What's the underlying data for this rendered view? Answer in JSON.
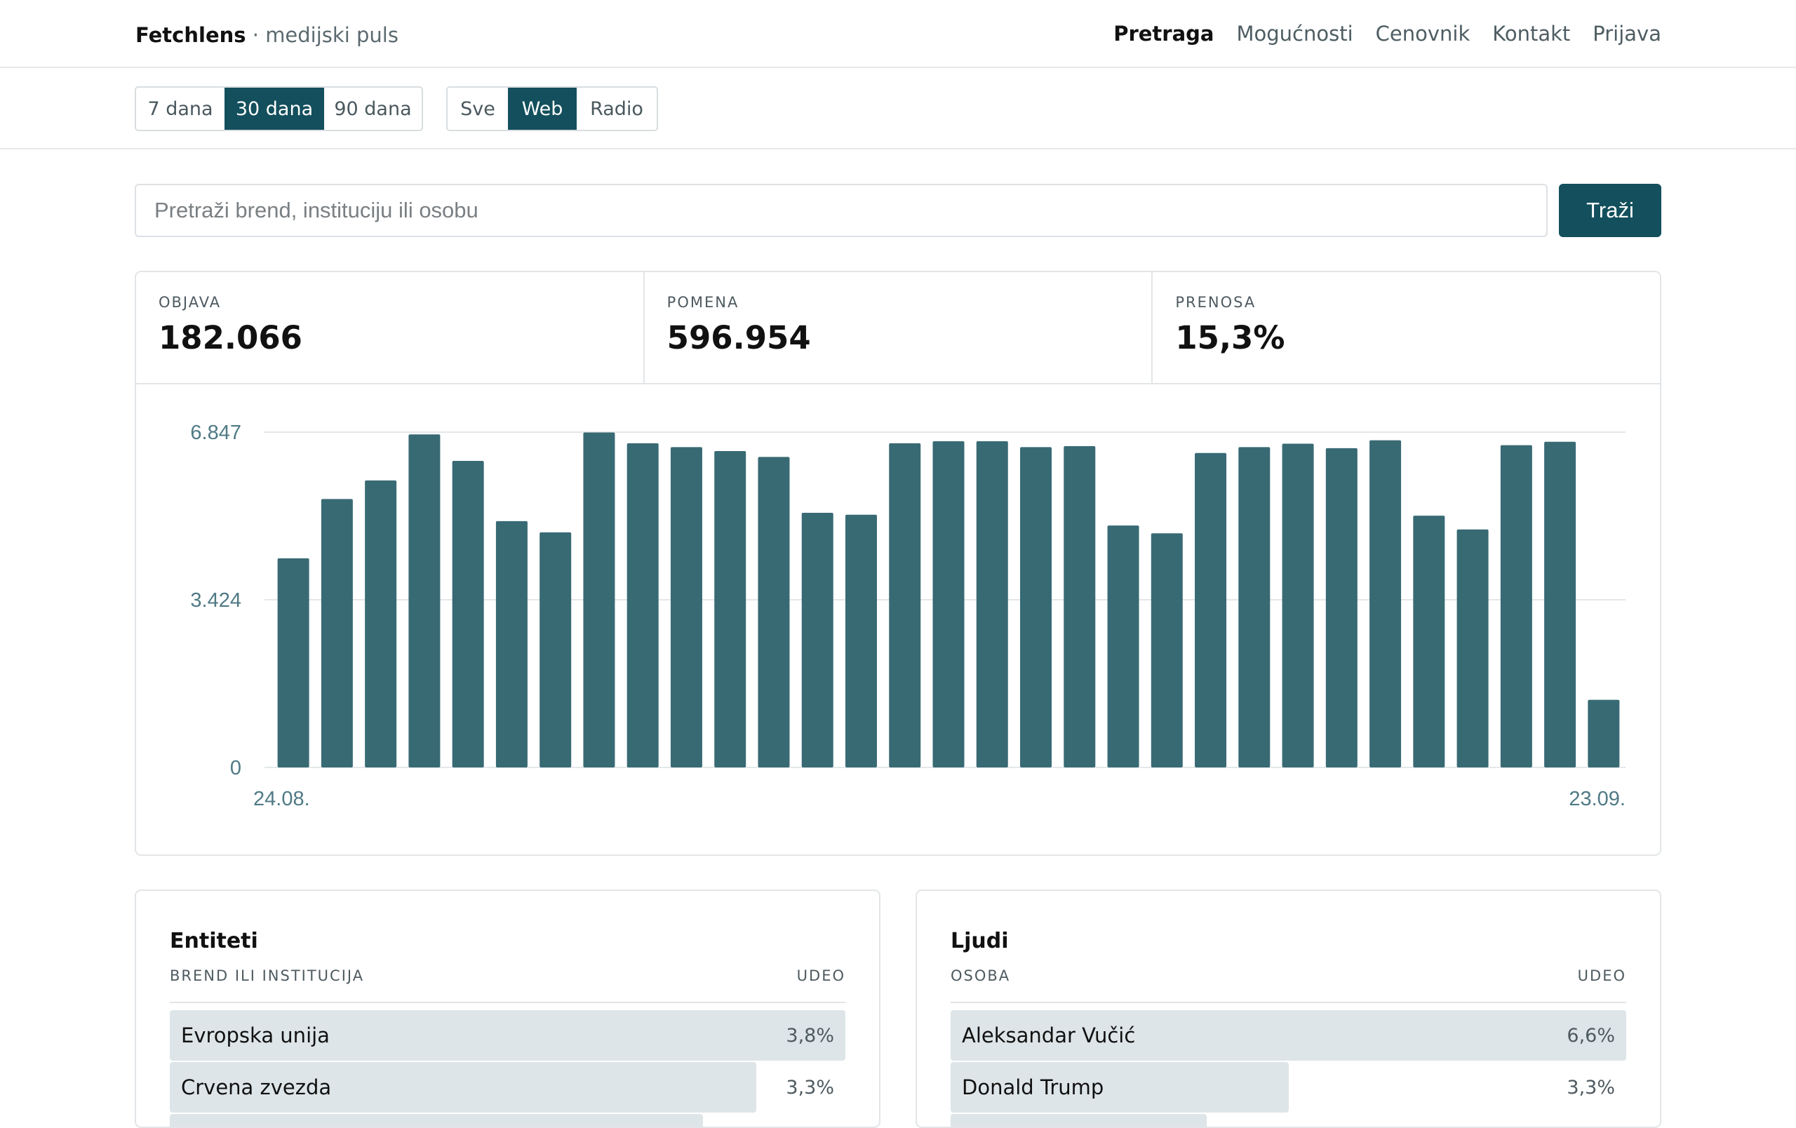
{
  "header": {
    "brand_name": "Fetchlens",
    "brand_sep": " · ",
    "brand_tag": "medijski puls",
    "nav": [
      "Pretraga",
      "Mogućnosti",
      "Cenovnik",
      "Kontakt",
      "Prijava"
    ],
    "nav_active": 0
  },
  "filters": {
    "range": [
      "7 dana",
      "30 dana",
      "90 dana"
    ],
    "range_active": 1,
    "source": [
      "Sve",
      "Web",
      "Radio"
    ],
    "source_active": 1
  },
  "search": {
    "placeholder": "Pretraži brend, instituciju ili osobu",
    "button": "Traži"
  },
  "stats": [
    {
      "label": "OBJAVA",
      "value": "182.066"
    },
    {
      "label": "POMENA",
      "value": "596.954"
    },
    {
      "label": "PRENOSA",
      "value": "15,3%"
    }
  ],
  "chart_data": {
    "type": "bar",
    "colors": {
      "bar": "#386a74",
      "grid": "#e3e7e9",
      "axis_text": "#4f7a85"
    },
    "y_ticks": [
      "0",
      "3.424",
      "6.847"
    ],
    "ylim": [
      0,
      6847
    ],
    "x_start_label": "24.08.",
    "x_end_label": "23.09.",
    "values": [
      4270,
      5480,
      5860,
      6800,
      6260,
      5030,
      4800,
      6840,
      6620,
      6540,
      6460,
      6340,
      5200,
      5160,
      6620,
      6660,
      6660,
      6540,
      6560,
      4940,
      4780,
      6420,
      6540,
      6610,
      6520,
      6680,
      5140,
      4860,
      6580,
      6650,
      1380
    ]
  },
  "entities": {
    "title": "Entiteti",
    "col_left": "BREND ILI INSTITUCIJA",
    "col_right": "UDEO",
    "rows": [
      {
        "name": "Evropska unija",
        "pct": "3,8%",
        "share": 3.8
      },
      {
        "name": "Crvena zvezda",
        "pct": "3,3%",
        "share": 3.3
      },
      {
        "name": "",
        "pct": "",
        "share": 3.0
      }
    ]
  },
  "people": {
    "title": "Ljudi",
    "col_left": "OSOBA",
    "col_right": "UDEO",
    "rows": [
      {
        "name": "Aleksandar Vučić",
        "pct": "6,6%",
        "share": 6.6
      },
      {
        "name": "Donald Trump",
        "pct": "3,3%",
        "share": 3.3
      },
      {
        "name": "",
        "pct": "",
        "share": 2.5
      }
    ]
  }
}
